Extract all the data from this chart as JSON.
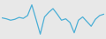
{
  "values": [
    0.0,
    -0.2,
    -0.5,
    -0.3,
    0.1,
    -0.1,
    0.5,
    2.8,
    -0.3,
    -3.5,
    0.2,
    1.2,
    2.0,
    0.8,
    -0.5,
    -0.2,
    -1.0,
    -3.2,
    -0.5,
    0.2,
    -0.8,
    -1.8,
    -0.3,
    0.5,
    0.8
  ],
  "line_color": "#4bafd6",
  "line_width": 0.9,
  "background_color": "#e8e8e8"
}
